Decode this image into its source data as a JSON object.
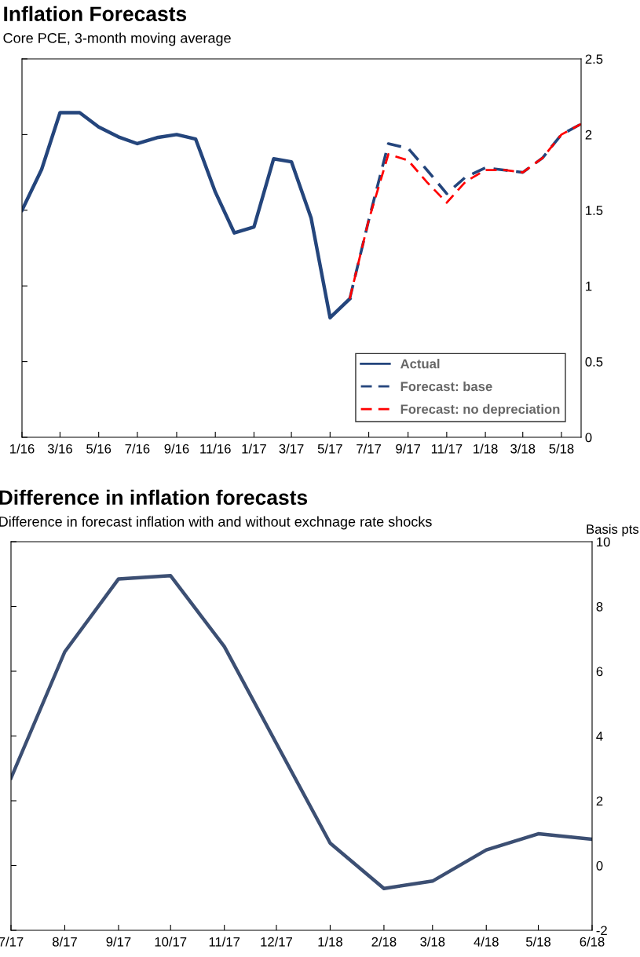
{
  "chart_data": [
    {
      "type": "line",
      "title": "Inflation Forecasts",
      "subtitle": "Core PCE, 3-month moving average",
      "series": [
        {
          "name": "Actual",
          "color": "#24457c",
          "line_style": "solid",
          "x": [
            "2016-01",
            "2016-02",
            "2016-03",
            "2016-04",
            "2016-05",
            "2016-06",
            "2016-07",
            "2016-08",
            "2016-09",
            "2016-10",
            "2016-11",
            "2016-12",
            "2017-01",
            "2017-02",
            "2017-03",
            "2017-04",
            "2017-05",
            "2017-06"
          ],
          "values": [
            1.5,
            1.77,
            2.145,
            2.145,
            2.05,
            1.985,
            1.94,
            1.98,
            2.0,
            1.97,
            1.62,
            1.35,
            1.39,
            1.84,
            1.82,
            1.45,
            0.79,
            0.915
          ]
        },
        {
          "name": "Forecast: base",
          "color": "#24457c",
          "line_style": "dashed",
          "x": [
            "2017-06",
            "2017-07",
            "2017-08",
            "2017-09",
            "2017-10",
            "2017-11",
            "2017-12",
            "2018-01",
            "2018-02",
            "2018-03",
            "2018-04",
            "2018-05",
            "2018-06"
          ],
          "values": [
            0.915,
            1.435,
            1.94,
            1.91,
            1.765,
            1.61,
            1.72,
            1.78,
            1.765,
            1.75,
            1.845,
            2.0,
            2.07
          ]
        },
        {
          "name": "Forecast: no depreciation",
          "color": "#ff0000",
          "line_style": "dashed",
          "x": [
            "2017-06",
            "2017-07",
            "2017-08",
            "2017-09",
            "2017-10",
            "2017-11",
            "2017-12",
            "2018-01",
            "2018-02",
            "2018-03",
            "2018-04",
            "2018-05",
            "2018-06"
          ],
          "values": [
            0.915,
            1.435,
            1.87,
            1.83,
            1.685,
            1.55,
            1.69,
            1.765,
            1.765,
            1.75,
            1.845,
            2.0,
            2.07
          ]
        }
      ],
      "xlim": [
        "2016-01",
        "2018-06"
      ],
      "xticks": [
        {
          "value": "2016-01",
          "label": "1/16"
        },
        {
          "value": "2016-03",
          "label": "3/16"
        },
        {
          "value": "2016-05",
          "label": "5/16"
        },
        {
          "value": "2016-07",
          "label": "7/16"
        },
        {
          "value": "2016-09",
          "label": "9/16"
        },
        {
          "value": "2016-11",
          "label": "11/16"
        },
        {
          "value": "2017-01",
          "label": "1/17"
        },
        {
          "value": "2017-03",
          "label": "3/17"
        },
        {
          "value": "2017-05",
          "label": "5/17"
        },
        {
          "value": "2017-07",
          "label": "7/17"
        },
        {
          "value": "2017-09",
          "label": "9/17"
        },
        {
          "value": "2017-11",
          "label": "11/17"
        },
        {
          "value": "2018-01",
          "label": "1/18"
        },
        {
          "value": "2018-03",
          "label": "3/18"
        },
        {
          "value": "2018-05",
          "label": "5/18"
        }
      ],
      "ylim": [
        0,
        2.5
      ],
      "yticks": [
        0,
        0.5,
        1,
        1.5,
        2,
        2.5
      ],
      "grid": false,
      "legend": "bottom right",
      "marker": "none"
    },
    {
      "type": "line",
      "title": "Difference in inflation forecasts",
      "subtitle": "Difference in forecast inflation with and without exchnage rate shocks",
      "ylabel": "Basis pts",
      "series": [
        {
          "color": "#3c4f73",
          "line_style": "solid",
          "x": [
            "2017-07",
            "2017-08",
            "2017-09",
            "2017-10",
            "2017-11",
            "2017-12",
            "2018-01",
            "2018-02",
            "2018-03",
            "2018-04",
            "2018-05",
            "2018-06"
          ],
          "values": [
            2.7,
            6.6,
            8.85,
            8.95,
            6.76,
            3.77,
            0.69,
            -0.71,
            -0.48,
            0.48,
            0.98,
            0.81
          ]
        }
      ],
      "xlim": [
        "2017-07",
        "2018-06"
      ],
      "xticks": [
        {
          "value": "2017-07",
          "label": "7/17"
        },
        {
          "value": "2017-08",
          "label": "8/17"
        },
        {
          "value": "2017-09",
          "label": "9/17"
        },
        {
          "value": "2017-10",
          "label": "10/17"
        },
        {
          "value": "2017-11",
          "label": "11/17"
        },
        {
          "value": "2017-12",
          "label": "12/17"
        },
        {
          "value": "2018-01",
          "label": "1/18"
        },
        {
          "value": "2018-02",
          "label": "2/18"
        },
        {
          "value": "2018-03",
          "label": "3/18"
        },
        {
          "value": "2018-04",
          "label": "4/18"
        },
        {
          "value": "2018-05",
          "label": "5/18"
        },
        {
          "value": "2018-06",
          "label": "6/18"
        }
      ],
      "ylim": [
        -2,
        10
      ],
      "yticks": [
        -2,
        0,
        2,
        4,
        6,
        8,
        10
      ],
      "grid": false,
      "legend": false,
      "marker": "none"
    }
  ]
}
